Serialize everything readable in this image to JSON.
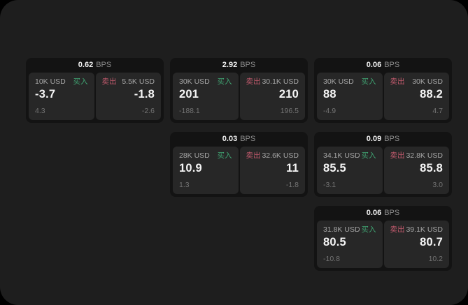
{
  "page": {
    "outer_bg": "#000000",
    "app_bg": "#1e1e1e",
    "card_bg": "#131313",
    "panel_bg": "#272727"
  },
  "colors": {
    "buy_green": "#40a573",
    "sell_red": "#c25a6d",
    "value_white": "#f5f5f5",
    "label_gray": "#a6a6a6",
    "sub_gray": "#737373"
  },
  "labels": {
    "bps_suffix": "BPS",
    "buy": "买入",
    "sell": "卖出"
  },
  "cards": [
    {
      "bps": "0.62",
      "buy": {
        "amount": "10K USD",
        "main": "-3.7",
        "sub": "4.3"
      },
      "sell": {
        "amount": "5.5K USD",
        "main": "-1.8",
        "sub": "-2.6"
      }
    },
    {
      "bps": "2.92",
      "buy": {
        "amount": "30K USD",
        "main": "201",
        "sub": "-188.1"
      },
      "sell": {
        "amount": "30.1K USD",
        "main": "210",
        "sub": "196.5"
      }
    },
    {
      "bps": "0.06",
      "buy": {
        "amount": "30K USD",
        "main": "88",
        "sub": "-4.9"
      },
      "sell": {
        "amount": "30K USD",
        "main": "88.2",
        "sub": "4.7"
      }
    },
    {
      "bps": "0.03",
      "buy": {
        "amount": "28K USD",
        "main": "10.9",
        "sub": "1.3"
      },
      "sell": {
        "amount": "32.6K USD",
        "main": "11",
        "sub": "-1.8"
      }
    },
    {
      "bps": "0.09",
      "buy": {
        "amount": "34.1K USD",
        "main": "85.5",
        "sub": "-3.1"
      },
      "sell": {
        "amount": "32.8K USD",
        "main": "85.8",
        "sub": "3.0"
      }
    },
    {
      "bps": "0.06",
      "buy": {
        "amount": "31.8K USD",
        "main": "80.5",
        "sub": "-10.8"
      },
      "sell": {
        "amount": "39.1K USD",
        "main": "80.7",
        "sub": "10.2"
      }
    }
  ]
}
